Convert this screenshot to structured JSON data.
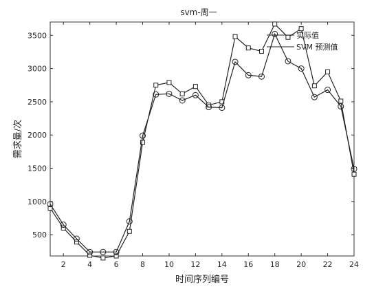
{
  "chart_data": {
    "type": "line",
    "title": "svm-周一",
    "xlabel": "时间序列编号",
    "ylabel": "需求量/次",
    "xlim": [
      1,
      24
    ],
    "ylim": [
      180,
      3700
    ],
    "x_ticks": [
      2,
      4,
      6,
      8,
      10,
      12,
      14,
      16,
      18,
      20,
      22,
      24
    ],
    "y_ticks": [
      500,
      1000,
      1500,
      2000,
      2500,
      3000,
      3500
    ],
    "grid": false,
    "legend_position": "top-right",
    "x": [
      1,
      2,
      3,
      4,
      5,
      6,
      7,
      8,
      9,
      10,
      11,
      12,
      13,
      14,
      15,
      16,
      17,
      18,
      19,
      20,
      21,
      22,
      23,
      24
    ],
    "series": [
      {
        "name": "实际值",
        "marker": "square",
        "values": [
          900,
          600,
          390,
          190,
          150,
          180,
          550,
          1890,
          2750,
          2790,
          2620,
          2730,
          2450,
          2500,
          3480,
          3310,
          3260,
          3670,
          3470,
          3600,
          2740,
          2950,
          2510,
          1410
        ]
      },
      {
        "name": "SVM 预测值",
        "marker": "circle",
        "values": [
          960,
          650,
          440,
          240,
          240,
          240,
          700,
          1990,
          2610,
          2620,
          2520,
          2600,
          2420,
          2410,
          3100,
          2900,
          2880,
          3520,
          3110,
          3000,
          2570,
          2680,
          2430,
          1490
        ]
      }
    ]
  }
}
